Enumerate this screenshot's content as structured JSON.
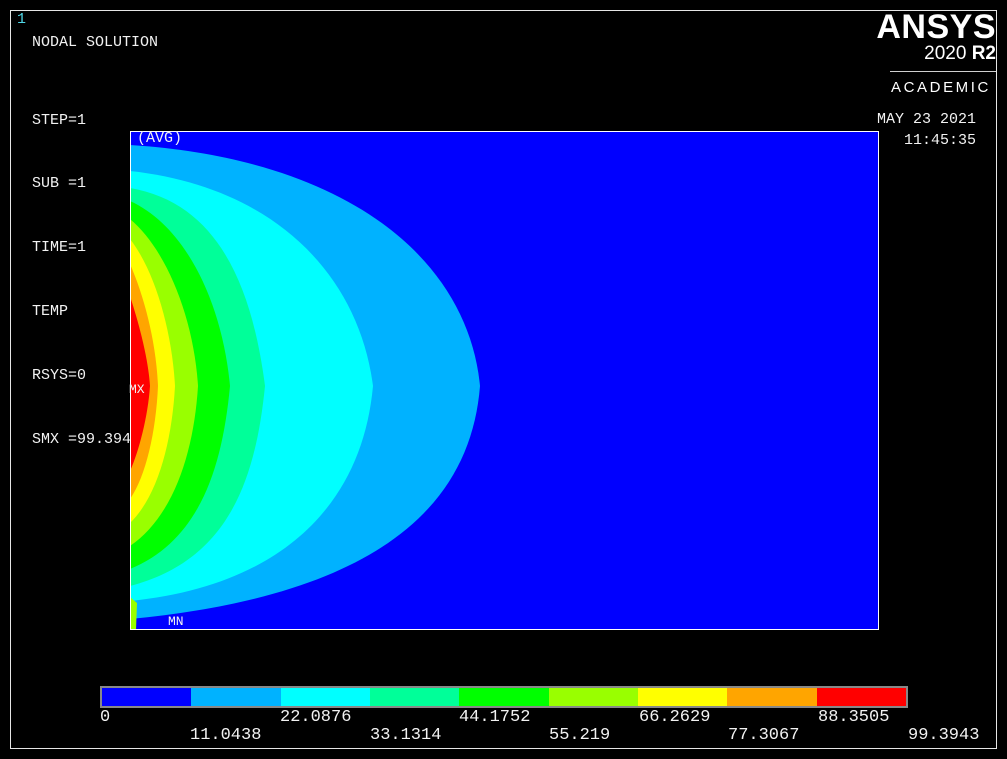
{
  "window": {
    "number": "1"
  },
  "plot_title": "NODAL SOLUTION",
  "info_lines": [
    "STEP=1",
    "SUB =1",
    "TIME=1",
    "TEMP",
    "RSYS=0",
    "SMX =99.3943"
  ],
  "logo": {
    "name": "ANSYS",
    "version": "2020",
    "release": "R2",
    "edition": "ACADEMIC"
  },
  "datetime": {
    "date": "MAY 23 2021",
    "time": "11:45:35"
  },
  "plot_labels": {
    "avg": "(AVG)",
    "max": "MX",
    "min": "MN"
  },
  "colors": {
    "background": "#000000",
    "accent": "#4fd6e6",
    "bands": [
      "#0000ff",
      "#00b2ff",
      "#00ffff",
      "#00ff99",
      "#00ff00",
      "#99ff00",
      "#ffff00",
      "#ffa500",
      "#ff0000"
    ]
  },
  "legend": {
    "ticks_upper": [
      "0",
      "22.0876",
      "44.1752",
      "66.2629",
      "88.3505"
    ],
    "ticks_lower": [
      "11.0438",
      "33.1314",
      "55.219",
      "77.3067",
      "99.3943"
    ]
  }
}
